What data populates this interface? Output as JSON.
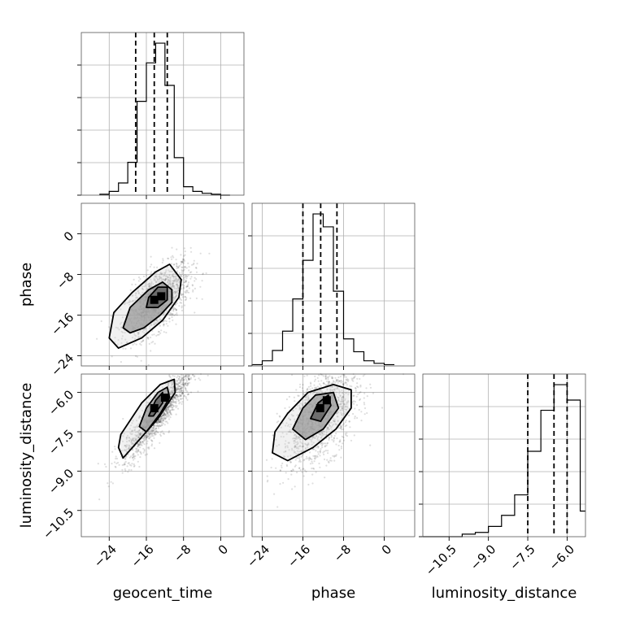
{
  "chart_data": {
    "type": "corner",
    "parameters": [
      "geocent_time",
      "phase",
      "luminosity_distance"
    ],
    "axes": {
      "geocent_time": {
        "range": [
          -30,
          5
        ],
        "ticks": [
          -24,
          -16,
          -8,
          0
        ],
        "tick_labels": [
          "−24",
          "−16",
          "−8",
          "0"
        ]
      },
      "phase": {
        "range": [
          -26,
          6
        ],
        "ticks": [
          -24,
          -16,
          -8,
          0
        ],
        "tick_labels": [
          "−24",
          "−16",
          "−8",
          "0"
        ]
      },
      "luminosity_distance": {
        "range": [
          -11.5,
          -5.3
        ],
        "ticks": [
          -10.5,
          -9.0,
          -7.5,
          -6.0
        ],
        "tick_labels": [
          "−10.5",
          "−9.0",
          "−7.5",
          "−6.0"
        ]
      }
    },
    "marginals": [
      {
        "parameter": "geocent_time",
        "bin_edges": [
          -26,
          -24,
          -22,
          -20,
          -18,
          -16,
          -14,
          -12,
          -10,
          -8,
          -6,
          -4,
          -2,
          0,
          2
        ],
        "counts": [
          1,
          4,
          13,
          35,
          100,
          141,
          162,
          117,
          40,
          9,
          4,
          2,
          1,
          0
        ],
        "quantiles": [
          -18.3,
          -14.3,
          -11.5
        ]
      },
      {
        "parameter": "phase",
        "bin_edges": [
          -26,
          -24,
          -22,
          -20,
          -18,
          -16,
          -14,
          -12,
          -10,
          -8,
          -6,
          -4,
          -2,
          0,
          2
        ],
        "counts": [
          1,
          4,
          12,
          27,
          52,
          82,
          118,
          108,
          58,
          21,
          11,
          4,
          2,
          1
        ],
        "quantiles": [
          -16.0,
          -12.5,
          -9.3
        ]
      },
      {
        "parameter": "luminosity_distance",
        "bin_edges": [
          -11.5,
          -11.0,
          -10.5,
          -10.0,
          -9.5,
          -9.0,
          -8.5,
          -8.0,
          -7.5,
          -7.0,
          -6.5,
          -6.0,
          -5.5,
          -5.3
        ],
        "counts": [
          0,
          0,
          0,
          3,
          5,
          12,
          25,
          49,
          100,
          148,
          178,
          160,
          30
        ],
        "quantiles": [
          -7.5,
          -6.5,
          -6.0
        ]
      }
    ],
    "scatter_pairs": [
      {
        "x": "geocent_time",
        "y": "phase",
        "center": [
          -13.5,
          -13.0
        ],
        "sd": [
          3.5,
          3.6
        ],
        "rho": 0.6,
        "contours": [
          [
            [
              -24,
              -20.5
            ],
            [
              -23,
              -15.5
            ],
            [
              -19,
              -11.5
            ],
            [
              -14,
              -7.5
            ],
            [
              -11,
              -6
            ],
            [
              -8.5,
              -9
            ],
            [
              -9,
              -12.5
            ],
            [
              -12.5,
              -17
            ],
            [
              -17,
              -20.5
            ],
            [
              -22,
              -22.5
            ]
          ],
          [
            [
              -21,
              -18.5
            ],
            [
              -19.5,
              -14.5
            ],
            [
              -15.5,
              -11
            ],
            [
              -12.5,
              -9.5
            ],
            [
              -10.5,
              -11
            ],
            [
              -10.5,
              -13.5
            ],
            [
              -13,
              -16
            ],
            [
              -16.5,
              -18.5
            ],
            [
              -19.5,
              -19.5
            ]
          ],
          [
            [
              -16,
              -14.5
            ],
            [
              -15.5,
              -12.5
            ],
            [
              -13.5,
              -10.5
            ],
            [
              -11.5,
              -10.5
            ],
            [
              -11.5,
              -13
            ],
            [
              -13.5,
              -14.5
            ]
          ]
        ],
        "peak_boxes": [
          [
            -14.3,
            -13.0
          ],
          [
            -12.8,
            -12.3
          ]
        ]
      },
      {
        "x": "geocent_time",
        "y": "luminosity_distance",
        "center": [
          -13.5,
          -6.8
        ],
        "sd": [
          3.8,
          0.9
        ],
        "rho": 0.9,
        "contours": [
          [
            [
              -22,
              -8.1
            ],
            [
              -21.5,
              -7.6
            ],
            [
              -17,
              -6.4
            ],
            [
              -13,
              -5.7
            ],
            [
              -10,
              -5.5
            ],
            [
              -9.8,
              -6.0
            ],
            [
              -13.5,
              -7.0
            ],
            [
              -18,
              -7.9
            ],
            [
              -21,
              -8.5
            ]
          ],
          [
            [
              -17.5,
              -7.3
            ],
            [
              -16,
              -6.6
            ],
            [
              -13.5,
              -6.0
            ],
            [
              -11.5,
              -5.8
            ],
            [
              -11,
              -6.2
            ],
            [
              -13,
              -6.8
            ],
            [
              -16,
              -7.5
            ]
          ],
          [
            [
              -15.5,
              -6.9
            ],
            [
              -14,
              -6.3
            ],
            [
              -12.5,
              -6.0
            ],
            [
              -12.5,
              -6.4
            ],
            [
              -14.5,
              -6.9
            ]
          ]
        ],
        "peak_boxes": [
          [
            -14.3,
            -6.6
          ],
          [
            -12.0,
            -6.2
          ]
        ]
      },
      {
        "x": "phase",
        "y": "luminosity_distance",
        "center": [
          -12.5,
          -6.9
        ],
        "sd": [
          3.8,
          1.0
        ],
        "rho": 0.55,
        "contours": [
          [
            [
              -22,
              -8.3
            ],
            [
              -21.5,
              -7.5
            ],
            [
              -19,
              -6.8
            ],
            [
              -15,
              -6.0
            ],
            [
              -10,
              -5.7
            ],
            [
              -6.5,
              -5.9
            ],
            [
              -6.5,
              -6.6
            ],
            [
              -9.5,
              -7.4
            ],
            [
              -14,
              -8.1
            ],
            [
              -19,
              -8.6
            ]
          ],
          [
            [
              -18,
              -7.4
            ],
            [
              -16,
              -6.6
            ],
            [
              -13.5,
              -6.1
            ],
            [
              -10,
              -6.0
            ],
            [
              -9,
              -6.6
            ],
            [
              -12,
              -7.4
            ],
            [
              -15.5,
              -7.8
            ]
          ],
          [
            [
              -14.5,
              -7.0
            ],
            [
              -13,
              -6.4
            ],
            [
              -11,
              -6.1
            ],
            [
              -10.5,
              -6.5
            ],
            [
              -12.5,
              -7.1
            ]
          ]
        ],
        "peak_boxes": [
          [
            -12.6,
            -6.6
          ],
          [
            -11.3,
            -6.3
          ]
        ]
      }
    ],
    "grid": true
  }
}
